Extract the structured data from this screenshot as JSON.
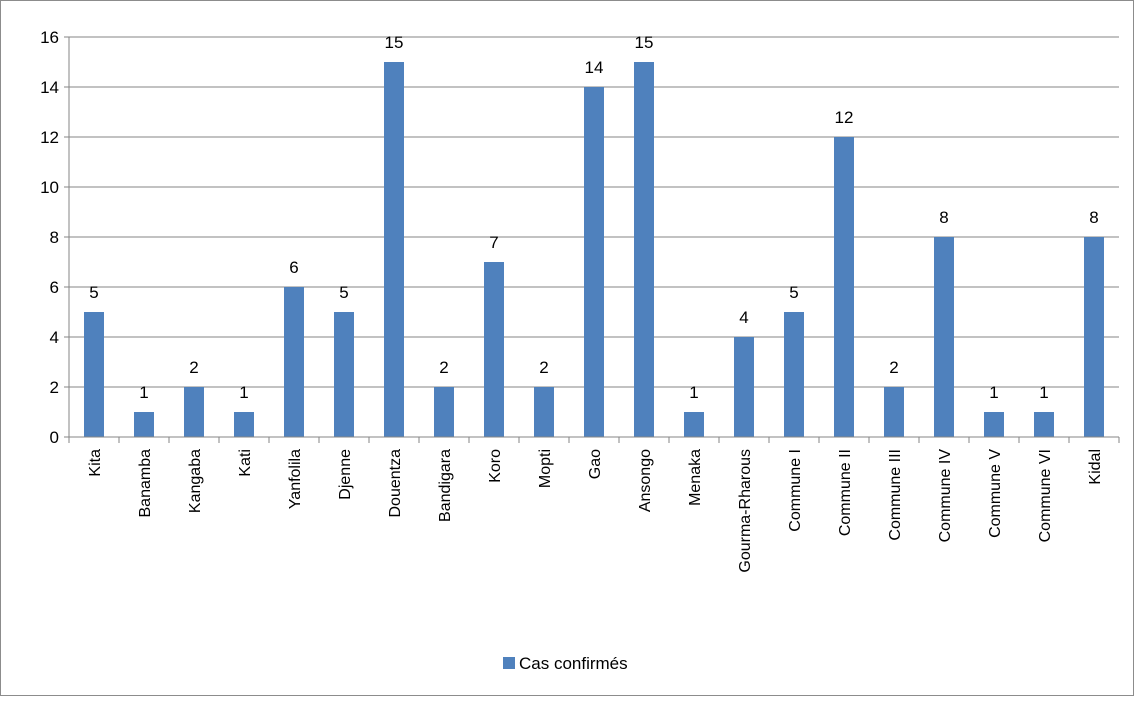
{
  "chart_data": {
    "type": "bar",
    "categories": [
      "Kita",
      "Banamba",
      "Kangaba",
      "Kati",
      "Yanfolila",
      "Djenne",
      "Douentza",
      "Bandigara",
      "Koro",
      "Mopti",
      "Gao",
      "Ansongo",
      "Menaka",
      "Gourma-Rharous",
      "Commune I",
      "Commune II",
      "Commune III",
      "Commune IV",
      "Commune V",
      "Commune VI",
      "Kidal"
    ],
    "series": [
      {
        "name": "Cas confirmés",
        "color": "#4f81bd",
        "values": [
          5,
          1,
          2,
          1,
          6,
          5,
          15,
          2,
          7,
          2,
          14,
          15,
          1,
          4,
          5,
          12,
          2,
          8,
          1,
          1,
          8
        ]
      }
    ],
    "ylim": [
      0,
      16
    ],
    "yticks": [
      0,
      2,
      4,
      6,
      8,
      10,
      12,
      14,
      16
    ],
    "grid": true,
    "data_labels": true,
    "legend_position": "bottom"
  }
}
